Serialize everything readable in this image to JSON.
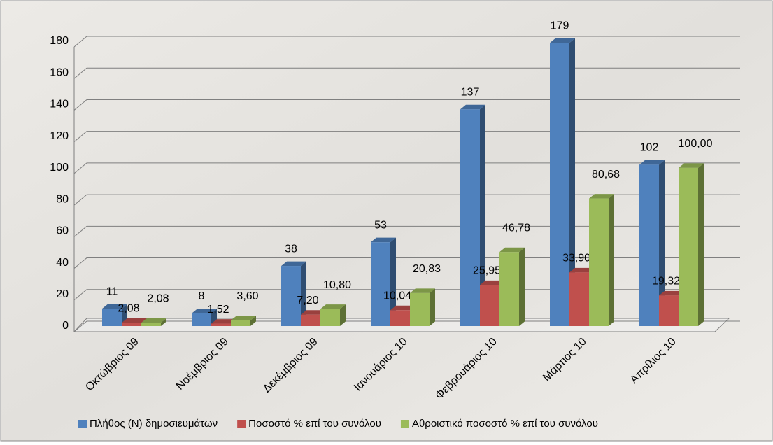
{
  "chart_data": {
    "type": "bar",
    "categories": [
      "Οκτώβριος 09",
      "Νοέμβριος 09",
      "Δεκέμβριος 09",
      "Ιανουάριος 10",
      "Φεβρουάριος 10",
      "Μάρτιος 10",
      "Απρίλιος 10"
    ],
    "series": [
      {
        "name": "Πλήθος (Ν) δημοσιευμάτων",
        "color": "#4f81bd",
        "values": [
          11,
          8,
          38,
          53,
          137,
          179,
          102
        ]
      },
      {
        "name": "Ποσοστό % επί του συνόλου",
        "color": "#c0504d",
        "values": [
          2.08,
          1.52,
          7.2,
          10.04,
          25.95,
          33.9,
          19.32
        ],
        "value_labels": [
          "2,08",
          "1,52",
          "7,20",
          "10,04",
          "25,95",
          "33,90",
          "19,32"
        ]
      },
      {
        "name": "Αθροιστικό ποσοστό % επί του συνόλου",
        "color": "#9bbb59",
        "values": [
          2.08,
          3.6,
          10.8,
          20.83,
          46.78,
          80.68,
          100.0
        ],
        "value_labels": [
          "2,08",
          "3,60",
          "10,80",
          "20,83",
          "46,78",
          "80,68",
          "100,00"
        ]
      }
    ],
    "ylim": [
      0,
      180
    ],
    "yticks": [
      0,
      20,
      40,
      60,
      80,
      100,
      120,
      140,
      160,
      180
    ],
    "grid": true,
    "legend": "bottom"
  }
}
